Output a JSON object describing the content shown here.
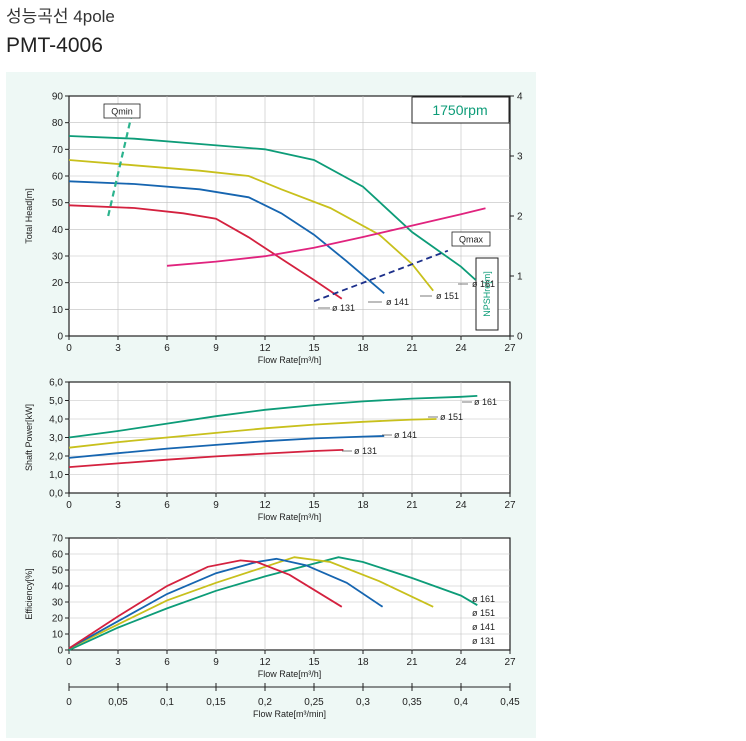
{
  "header": {
    "title": "성능곡선 4pole",
    "model": "PMT-4006"
  },
  "colors": {
    "background": "#eef8f5",
    "d161": "#0d9c78",
    "d151": "#c8c01c",
    "d141": "#1665b0",
    "d131": "#d4213f",
    "npsh": "#e0237e",
    "qmin": "#2bb38d",
    "qmax": "#1c2f8a"
  },
  "chart_data": [
    {
      "type": "line",
      "id": "head",
      "speed_label": "1750rpm",
      "xlabel": "Flow Rate[m³/h]",
      "ylabel": "Total Head[m]",
      "y2label": "NPSHre[m]",
      "xlim": [
        0,
        27
      ],
      "ylim": [
        0,
        90
      ],
      "y2lim": [
        0,
        4
      ],
      "x_ticks": [
        "0",
        "3",
        "6",
        "9",
        "12",
        "15",
        "18",
        "21",
        "24",
        "27"
      ],
      "y_ticks": [
        "0",
        "10",
        "20",
        "30",
        "40",
        "50",
        "60",
        "70",
        "80",
        "90"
      ],
      "y2_ticks": [
        "0",
        "1",
        "2",
        "3",
        "4"
      ],
      "series": [
        {
          "name": "ø 161",
          "label_key": "d161",
          "points": [
            [
              0,
              75
            ],
            [
              4,
              74
            ],
            [
              8,
              72
            ],
            [
              12,
              70
            ],
            [
              15,
              66
            ],
            [
              18,
              56
            ],
            [
              21,
              39
            ],
            [
              24,
              26
            ],
            [
              24.9,
              21
            ]
          ]
        },
        {
          "name": "ø 151",
          "label_key": "d151",
          "points": [
            [
              0,
              66
            ],
            [
              4,
              64
            ],
            [
              8,
              62
            ],
            [
              11,
              60
            ],
            [
              13,
              55
            ],
            [
              16,
              48
            ],
            [
              19,
              38
            ],
            [
              21,
              27
            ],
            [
              22.3,
              17
            ]
          ]
        },
        {
          "name": "ø 141",
          "label_key": "d141",
          "points": [
            [
              0,
              58
            ],
            [
              4,
              57
            ],
            [
              8,
              55
            ],
            [
              11,
              52
            ],
            [
              13,
              46
            ],
            [
              15,
              38
            ],
            [
              17,
              28
            ],
            [
              19.3,
              16
            ]
          ]
        },
        {
          "name": "ø 131",
          "label_key": "d131",
          "points": [
            [
              0,
              49
            ],
            [
              4,
              48
            ],
            [
              7,
              46
            ],
            [
              9,
              44
            ],
            [
              11,
              37
            ],
            [
              13,
              29
            ],
            [
              15,
              21
            ],
            [
              16.7,
              14
            ]
          ]
        }
      ],
      "npsh": {
        "name": "NPSHre",
        "points": [
          [
            6,
            1.17
          ],
          [
            9,
            1.24
          ],
          [
            12,
            1.33
          ],
          [
            15,
            1.47
          ],
          [
            18,
            1.65
          ],
          [
            21,
            1.84
          ],
          [
            24,
            2.03
          ],
          [
            25.5,
            2.13
          ]
        ]
      },
      "qmin": {
        "label": "Qmin",
        "points": [
          [
            2.4,
            45
          ],
          [
            3.8,
            82
          ]
        ]
      },
      "qmax": {
        "label": "Qmax",
        "points": [
          [
            15,
            13
          ],
          [
            23.2,
            32
          ]
        ]
      }
    },
    {
      "type": "line",
      "id": "power",
      "xlabel": "Flow Rate[m³/h]",
      "ylabel": "Shaft Power[kW]",
      "xlim": [
        0,
        27
      ],
      "ylim": [
        0,
        6
      ],
      "x_ticks": [
        "0",
        "3",
        "6",
        "9",
        "12",
        "15",
        "18",
        "21",
        "24",
        "27"
      ],
      "y_ticks": [
        "0,0",
        "1,0",
        "2,0",
        "3,0",
        "4,0",
        "5,0",
        "6,0"
      ],
      "series": [
        {
          "name": "ø 161",
          "label_key": "d161",
          "points": [
            [
              0,
              3.0
            ],
            [
              3,
              3.35
            ],
            [
              6,
              3.75
            ],
            [
              9,
              4.15
            ],
            [
              12,
              4.5
            ],
            [
              15,
              4.75
            ],
            [
              18,
              4.95
            ],
            [
              21,
              5.1
            ],
            [
              24,
              5.2
            ],
            [
              25,
              5.25
            ]
          ]
        },
        {
          "name": "ø 151",
          "label_key": "d151",
          "points": [
            [
              0,
              2.45
            ],
            [
              3,
              2.75
            ],
            [
              6,
              3.0
            ],
            [
              9,
              3.25
            ],
            [
              12,
              3.5
            ],
            [
              15,
              3.7
            ],
            [
              18,
              3.85
            ],
            [
              21,
              3.97
            ],
            [
              22.5,
              4.0
            ]
          ]
        },
        {
          "name": "ø 141",
          "label_key": "d141",
          "points": [
            [
              0,
              1.9
            ],
            [
              3,
              2.15
            ],
            [
              6,
              2.4
            ],
            [
              9,
              2.6
            ],
            [
              12,
              2.8
            ],
            [
              15,
              2.95
            ],
            [
              18,
              3.05
            ],
            [
              19.3,
              3.08
            ]
          ]
        },
        {
          "name": "ø 131",
          "label_key": "d131",
          "points": [
            [
              0,
              1.4
            ],
            [
              3,
              1.6
            ],
            [
              6,
              1.8
            ],
            [
              9,
              1.98
            ],
            [
              12,
              2.13
            ],
            [
              15,
              2.27
            ],
            [
              16.8,
              2.33
            ]
          ]
        }
      ]
    },
    {
      "type": "line",
      "id": "efficiency",
      "xlabel": "Flow Rate[m³/h]",
      "ylabel": "Efficiency[%]",
      "xlim": [
        0,
        27
      ],
      "ylim": [
        0,
        70
      ],
      "x_ticks": [
        "0",
        "3",
        "6",
        "9",
        "12",
        "15",
        "18",
        "21",
        "24",
        "27"
      ],
      "y_ticks": [
        "0",
        "10",
        "20",
        "30",
        "40",
        "50",
        "60",
        "70"
      ],
      "series": [
        {
          "name": "ø 161",
          "label_key": "d161",
          "points": [
            [
              0,
              0
            ],
            [
              3,
              14
            ],
            [
              6,
              26
            ],
            [
              9,
              37
            ],
            [
              12,
              46
            ],
            [
              15,
              54
            ],
            [
              16.5,
              58
            ],
            [
              18,
              55
            ],
            [
              21,
              45
            ],
            [
              24,
              34
            ],
            [
              25,
              28
            ]
          ]
        },
        {
          "name": "ø 151",
          "label_key": "d151",
          "points": [
            [
              0,
              1
            ],
            [
              3,
              16
            ],
            [
              6,
              31
            ],
            [
              9,
              42
            ],
            [
              12,
              52
            ],
            [
              13.8,
              58
            ],
            [
              16,
              55
            ],
            [
              19,
              43
            ],
            [
              22.3,
              27
            ]
          ]
        },
        {
          "name": "ø 141",
          "label_key": "d141",
          "points": [
            [
              0,
              1
            ],
            [
              3,
              18
            ],
            [
              6,
              35
            ],
            [
              9,
              48
            ],
            [
              11.5,
              55
            ],
            [
              12.7,
              57
            ],
            [
              14.5,
              53
            ],
            [
              17,
              42
            ],
            [
              19.2,
              27
            ]
          ]
        },
        {
          "name": "ø 131",
          "label_key": "d131",
          "points": [
            [
              0,
              1
            ],
            [
              3,
              21
            ],
            [
              6,
              40
            ],
            [
              8.5,
              52
            ],
            [
              10.5,
              56
            ],
            [
              11.5,
              55
            ],
            [
              13.5,
              47
            ],
            [
              16.7,
              27
            ]
          ]
        }
      ],
      "secondary_xlabel": "Flow Rate[m³/min]",
      "secondary_xlim": [
        0,
        0.45
      ],
      "secondary_x_ticks": [
        "0",
        "0,05",
        "0,1",
        "0,15",
        "0,2",
        "0,25",
        "0,3",
        "0,35",
        "0,4",
        "0,45"
      ]
    }
  ],
  "legend_labels": {
    "d161": "ø 161",
    "d151": "ø 151",
    "d141": "ø 141",
    "d131": "ø 131"
  }
}
